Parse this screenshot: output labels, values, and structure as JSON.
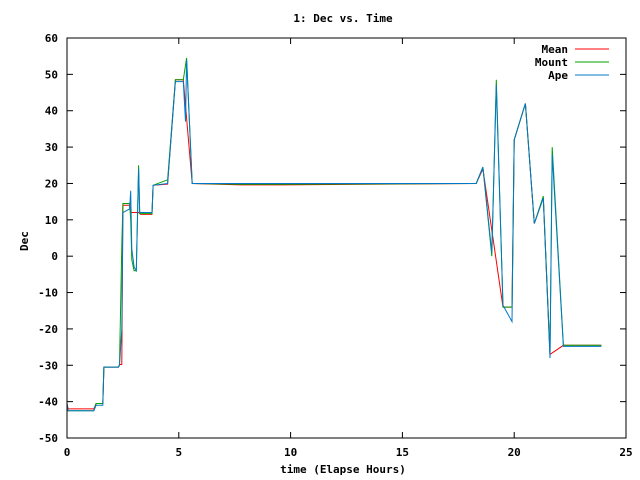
{
  "chart_data": {
    "type": "line",
    "title": "1: Dec vs. Time",
    "xlabel": "time (Elapse Hours)",
    "ylabel": "Dec",
    "xlim": [
      0,
      25
    ],
    "ylim": [
      -50,
      60
    ],
    "xticks": [
      0,
      5,
      10,
      15,
      20,
      25
    ],
    "yticks": [
      -50,
      -40,
      -30,
      -20,
      -10,
      0,
      10,
      20,
      30,
      40,
      50,
      60
    ],
    "legend_position": "top-right",
    "grid": false,
    "series": [
      {
        "name": "Mean",
        "color": "#ff0000",
        "points": [
          [
            0.0,
            -40.5
          ],
          [
            0.05,
            -42
          ],
          [
            1.2,
            -42
          ],
          [
            1.3,
            -40.5
          ],
          [
            1.6,
            -40.5
          ],
          [
            1.65,
            -30.5
          ],
          [
            2.3,
            -30.5
          ],
          [
            2.35,
            -29.8
          ],
          [
            2.45,
            -29.8
          ],
          [
            2.5,
            14
          ],
          [
            2.8,
            14
          ],
          [
            2.85,
            12
          ],
          [
            3.2,
            12
          ],
          [
            3.3,
            11.5
          ],
          [
            3.8,
            11.5
          ],
          [
            3.85,
            19.5
          ],
          [
            4.5,
            19.8
          ],
          [
            4.85,
            48.5
          ],
          [
            5.2,
            48.5
          ],
          [
            5.6,
            20
          ],
          [
            7.8,
            19.6
          ],
          [
            9.6,
            19.6
          ],
          [
            18.3,
            20
          ],
          [
            18.6,
            24
          ],
          [
            19.5,
            -14
          ],
          [
            19.9,
            -14
          ],
          [
            20.0,
            32
          ],
          [
            20.5,
            42
          ],
          [
            20.9,
            9
          ],
          [
            21.3,
            16
          ],
          [
            21.6,
            -27
          ],
          [
            22.2,
            -24.5
          ],
          [
            23.9,
            -24.5
          ]
        ]
      },
      {
        "name": "Mount",
        "color": "#00a000",
        "points": [
          [
            0.0,
            -41
          ],
          [
            0.05,
            -42.5
          ],
          [
            1.2,
            -42.5
          ],
          [
            1.3,
            -40.5
          ],
          [
            1.6,
            -40.5
          ],
          [
            1.65,
            -30.5
          ],
          [
            2.3,
            -30.5
          ],
          [
            2.35,
            -29.8
          ],
          [
            2.45,
            3
          ],
          [
            2.5,
            14.5
          ],
          [
            2.8,
            14.5
          ],
          [
            2.85,
            10
          ],
          [
            2.9,
            -1
          ],
          [
            3.0,
            -4
          ],
          [
            3.1,
            -4
          ],
          [
            3.2,
            25
          ],
          [
            3.25,
            11.7
          ],
          [
            3.8,
            11.7
          ],
          [
            3.85,
            19.5
          ],
          [
            4.5,
            21
          ],
          [
            4.85,
            48.5
          ],
          [
            5.2,
            48.5
          ],
          [
            5.35,
            54.5
          ],
          [
            5.6,
            20
          ],
          [
            7.8,
            19.8
          ],
          [
            9.6,
            19.8
          ],
          [
            18.3,
            20
          ],
          [
            18.6,
            24.5
          ],
          [
            19.0,
            0
          ],
          [
            19.2,
            48.5
          ],
          [
            19.5,
            -14
          ],
          [
            19.9,
            -14
          ],
          [
            20.0,
            32
          ],
          [
            20.5,
            42
          ],
          [
            20.9,
            9
          ],
          [
            21.3,
            16.5
          ],
          [
            21.6,
            -27
          ],
          [
            21.7,
            30
          ],
          [
            22.2,
            -24.5
          ],
          [
            23.9,
            -24.5
          ]
        ]
      },
      {
        "name": "Ape",
        "color": "#0078c8",
        "points": [
          [
            0.0,
            -40.5
          ],
          [
            0.05,
            -42.5
          ],
          [
            1.2,
            -42.5
          ],
          [
            1.3,
            -41
          ],
          [
            1.6,
            -41
          ],
          [
            1.65,
            -30.5
          ],
          [
            2.3,
            -30.5
          ],
          [
            2.35,
            -30
          ],
          [
            2.45,
            -20
          ],
          [
            2.5,
            12
          ],
          [
            2.8,
            13
          ],
          [
            2.85,
            18
          ],
          [
            2.9,
            2
          ],
          [
            3.0,
            -3
          ],
          [
            3.1,
            -4
          ],
          [
            3.2,
            24
          ],
          [
            3.25,
            12
          ],
          [
            3.8,
            12
          ],
          [
            3.85,
            19.5
          ],
          [
            4.5,
            20
          ],
          [
            4.85,
            48
          ],
          [
            5.2,
            48
          ],
          [
            5.3,
            37
          ],
          [
            5.35,
            54
          ],
          [
            5.6,
            20
          ],
          [
            7.8,
            20
          ],
          [
            9.6,
            20
          ],
          [
            18.3,
            20
          ],
          [
            18.6,
            24.5
          ],
          [
            19.0,
            1
          ],
          [
            19.2,
            47
          ],
          [
            19.5,
            -13.5
          ],
          [
            19.9,
            -18
          ],
          [
            20.0,
            32
          ],
          [
            20.5,
            42
          ],
          [
            20.9,
            9
          ],
          [
            21.3,
            16
          ],
          [
            21.6,
            -28
          ],
          [
            21.7,
            28
          ],
          [
            22.2,
            -24.8
          ],
          [
            23.9,
            -24.8
          ]
        ]
      }
    ]
  }
}
